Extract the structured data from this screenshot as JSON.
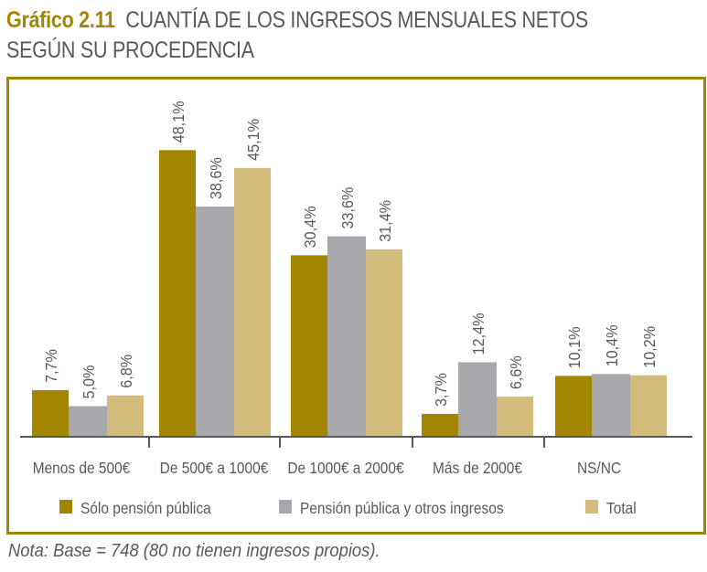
{
  "header": {
    "figure_number": "Gráfico 2.11",
    "title_line1": "CUANTÍA DE LOS INGRESOS MENSUALES NETOS",
    "title_line2": "SEGÚN SU PROCEDENCIA"
  },
  "note": "Nota: Base = 748 (80 no tienen ingresos propios).",
  "colors": {
    "frame": "#a28500",
    "series": [
      "#a28500",
      "#a7a8ab",
      "#d2bb7b"
    ],
    "axis": "#58595b",
    "text": "#58595b"
  },
  "chart_data": {
    "type": "bar",
    "title": "Gráfico 2.11 CUANTÍA DE LOS INGRESOS MENSUALES NETOS SEGÚN SU PROCEDENCIA",
    "xlabel": "",
    "ylabel": "",
    "ylim": [
      0,
      50
    ],
    "grid": false,
    "legend_position": "bottom",
    "categories": [
      "Menos de 500€",
      "De 500€ a 1000€",
      "De 1000€ a 2000€",
      "Más de 2000€",
      "NS/NC"
    ],
    "series": [
      {
        "name": "Sólo pensión pública",
        "values": [
          7.7,
          48.1,
          30.4,
          3.7,
          10.1
        ],
        "labels": [
          "7,7%",
          "48,1%",
          "30,4%",
          "3,7%",
          "10,1%"
        ]
      },
      {
        "name": "Pensión pública y otros ingresos",
        "values": [
          5.0,
          38.6,
          33.6,
          12.4,
          10.4
        ],
        "labels": [
          "5,0%",
          "38,6%",
          "33,6%",
          "12,4%",
          "10,4%"
        ]
      },
      {
        "name": "Total",
        "values": [
          6.8,
          45.1,
          31.4,
          6.6,
          10.2
        ],
        "labels": [
          "6,8%",
          "45,1%",
          "31,4%",
          "6,6%",
          "10,2%"
        ]
      }
    ]
  }
}
